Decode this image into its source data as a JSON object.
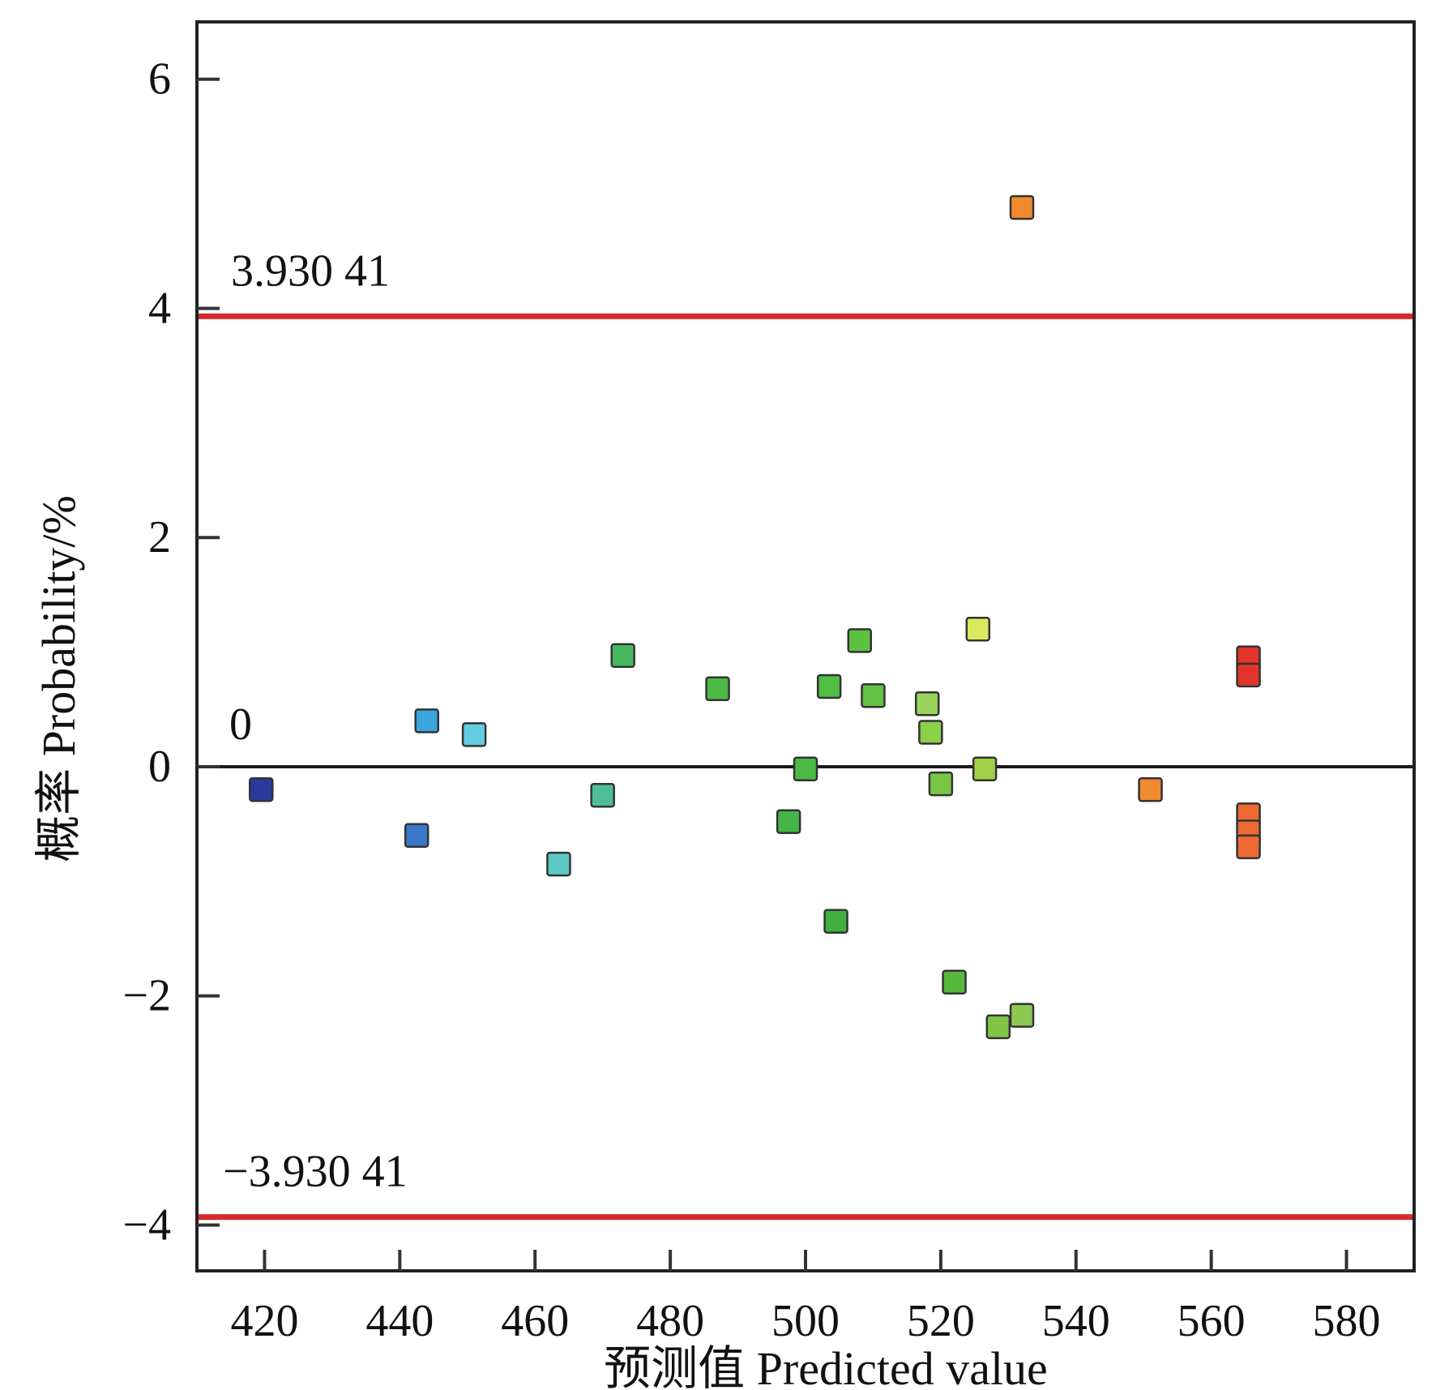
{
  "chart_data": {
    "type": "scatter",
    "x_axis": {
      "label": "预测值 Predicted value",
      "range": [
        410,
        590
      ],
      "ticks": [
        420,
        440,
        460,
        480,
        500,
        520,
        540,
        560,
        580
      ],
      "tick_labels": [
        "420",
        "440",
        "460",
        "480",
        "500",
        "520",
        "540",
        "560",
        "580"
      ]
    },
    "y_axis": {
      "label": "概率 Probability/%",
      "range": [
        -4.4,
        6.5
      ],
      "ticks": [
        -4,
        -2,
        0,
        2,
        4,
        6
      ],
      "tick_labels": [
        "−4",
        "−2",
        "0",
        "2",
        "4",
        "6"
      ]
    },
    "grid": false,
    "reference_lines": [
      {
        "value": 3.93041,
        "label": "3.930 41",
        "color": "#d42a2a"
      },
      {
        "value": 0,
        "label": "0",
        "color": "#1a1a1a"
      },
      {
        "value": -3.93041,
        "label": "−3.930 41",
        "color": "#d42a2a"
      }
    ],
    "points": [
      {
        "x": 419.5,
        "y": -0.2,
        "color": "#2b3a9a"
      },
      {
        "x": 442.5,
        "y": -0.6,
        "color": "#3a78cc"
      },
      {
        "x": 444,
        "y": 0.4,
        "color": "#3aa6e0"
      },
      {
        "x": 451,
        "y": 0.28,
        "color": "#62cde0"
      },
      {
        "x": 463.5,
        "y": -0.85,
        "color": "#5cc9c4"
      },
      {
        "x": 470,
        "y": -0.25,
        "color": "#4fbe98"
      },
      {
        "x": 473,
        "y": 0.97,
        "color": "#45b860"
      },
      {
        "x": 487,
        "y": 0.68,
        "color": "#4cbb45"
      },
      {
        "x": 497.5,
        "y": -0.48,
        "color": "#45b545"
      },
      {
        "x": 500,
        "y": -0.02,
        "color": "#4cbb45"
      },
      {
        "x": 503.5,
        "y": 0.7,
        "color": "#50bd45"
      },
      {
        "x": 504.5,
        "y": -1.35,
        "color": "#40b040"
      },
      {
        "x": 508,
        "y": 1.1,
        "color": "#5cc040"
      },
      {
        "x": 510,
        "y": 0.62,
        "color": "#62c245"
      },
      {
        "x": 518,
        "y": 0.55,
        "color": "#9ad45a"
      },
      {
        "x": 518.5,
        "y": 0.3,
        "color": "#8ccf48"
      },
      {
        "x": 520,
        "y": -0.15,
        "color": "#79c645"
      },
      {
        "x": 522,
        "y": -1.88,
        "color": "#56b83c"
      },
      {
        "x": 525.5,
        "y": 1.2,
        "color": "#dbe860"
      },
      {
        "x": 526.5,
        "y": -0.02,
        "color": "#a2cf48"
      },
      {
        "x": 528.5,
        "y": -2.27,
        "color": "#80c445"
      },
      {
        "x": 532,
        "y": -2.17,
        "color": "#8cc852"
      },
      {
        "x": 532,
        "y": 4.88,
        "color": "#f08a2e"
      },
      {
        "x": 551,
        "y": -0.2,
        "color": "#f08a2e"
      },
      {
        "x": 565.5,
        "y": 0.95,
        "color": "#e3342b"
      },
      {
        "x": 565.5,
        "y": 0.8,
        "color": "#e3342b"
      },
      {
        "x": 565.5,
        "y": -0.42,
        "color": "#ec6a32"
      },
      {
        "x": 565.5,
        "y": -0.57,
        "color": "#ec6a32"
      },
      {
        "x": 565.5,
        "y": -0.7,
        "color": "#ec6a32"
      }
    ]
  }
}
